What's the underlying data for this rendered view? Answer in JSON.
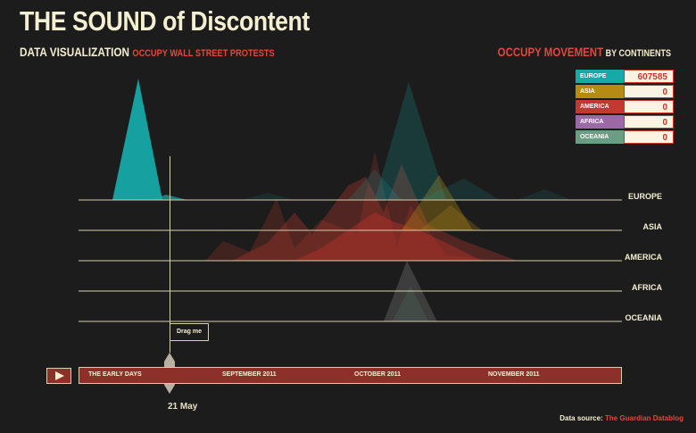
{
  "header": {
    "title": "THE SOUND of Discontent",
    "subtitle": "DATA VISUALIZATION",
    "subtitle_accent": "OCCUPY WALL STREET PROTESTS"
  },
  "legend": {
    "title_accent": "OCCUPY MOVEMENT",
    "title_rest": "BY CONTINENTS",
    "items": [
      {
        "name": "EUROPE",
        "value": "607585",
        "color": "#17a8a8"
      },
      {
        "name": "ASIA",
        "value": "0",
        "color": "#b88a12"
      },
      {
        "name": "AMERICA",
        "value": "0",
        "color": "#c23a2f"
      },
      {
        "name": "AFRICA",
        "value": "0",
        "color": "#9b6aa6"
      },
      {
        "name": "OCEANIA",
        "value": "0",
        "color": "#6a9e84"
      }
    ]
  },
  "continents": [
    "EUROPE",
    "ASIA",
    "AMERICA",
    "AFRICA",
    "OCEANIA"
  ],
  "timeline": {
    "play_icon": "play-icon",
    "labels": [
      "THE EARLY DAYS",
      "SEPTEMBER 2011",
      "OCTOBER 2011",
      "NOVEMBER 2011"
    ],
    "drag_tip": "Drag me",
    "current_date": "21 May"
  },
  "source": {
    "label": "Data source:",
    "link": "The Guardian Datablog"
  }
}
